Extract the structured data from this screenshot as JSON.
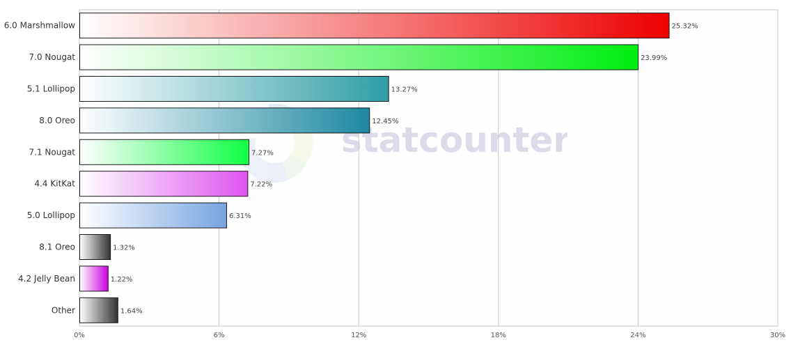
{
  "watermark": {
    "text": "statcounter"
  },
  "colors": {
    "plot_bg": "#fbfbfd",
    "grid": "#c8c8c8",
    "axis_text": "#555555",
    "category_text": "#333333",
    "value_text": "#444444",
    "watermark_text": "#c9cadf"
  },
  "chart_data": {
    "type": "bar",
    "orientation": "horizontal",
    "categories": [
      "6.0 Marshmallow",
      "7.0 Nougat",
      "5.1 Lollipop",
      "8.0 Oreo",
      "7.1 Nougat",
      "4.4 KitKat",
      "5.0 Lollipop",
      "8.1 Oreo",
      "4.2 Jelly Bean",
      "Other"
    ],
    "values": [
      25.32,
      23.99,
      13.27,
      12.45,
      7.27,
      7.22,
      6.31,
      1.32,
      1.22,
      1.64
    ],
    "value_labels": [
      "25.32%",
      "23.99%",
      "13.27%",
      "12.45%",
      "7.27%",
      "7.22%",
      "6.31%",
      "1.32%",
      "1.22%",
      "1.64%"
    ],
    "bar_colors": [
      "#ee0000",
      "#00ee11",
      "#2e9ea6",
      "#1c88a0",
      "#11ff44",
      "#dd55ee",
      "#77a4e0",
      "#333333",
      "#cc00dd",
      "#333333"
    ],
    "xlim": [
      0,
      30
    ],
    "xticks": [
      0,
      6,
      12,
      18,
      24,
      30
    ],
    "xtick_labels": [
      "0%",
      "6%",
      "12%",
      "18%",
      "24%",
      "30%"
    ],
    "grid": true,
    "title": "",
    "xlabel": "",
    "ylabel": ""
  }
}
